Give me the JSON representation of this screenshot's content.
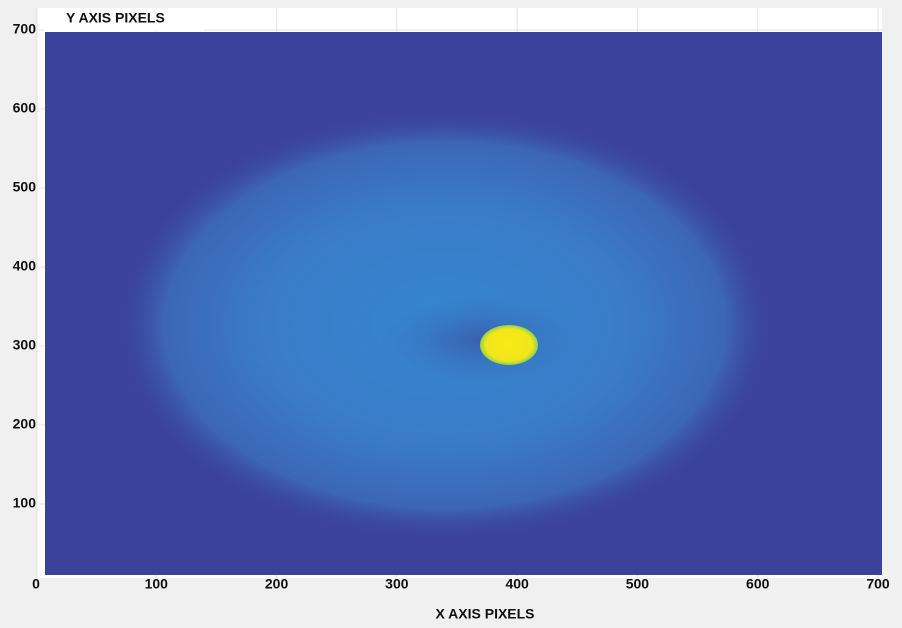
{
  "chart_data": {
    "type": "heatmap",
    "xlabel": "X AXIS PIXELS",
    "ylabel": "Y AXIS PIXELS",
    "xlim": [
      0,
      700
    ],
    "ylim": [
      0,
      700
    ],
    "xticks": [
      0,
      100,
      200,
      300,
      400,
      500,
      600,
      700
    ],
    "yticks": [
      100,
      200,
      300,
      400,
      500,
      600,
      700
    ],
    "grid": true
  }
}
